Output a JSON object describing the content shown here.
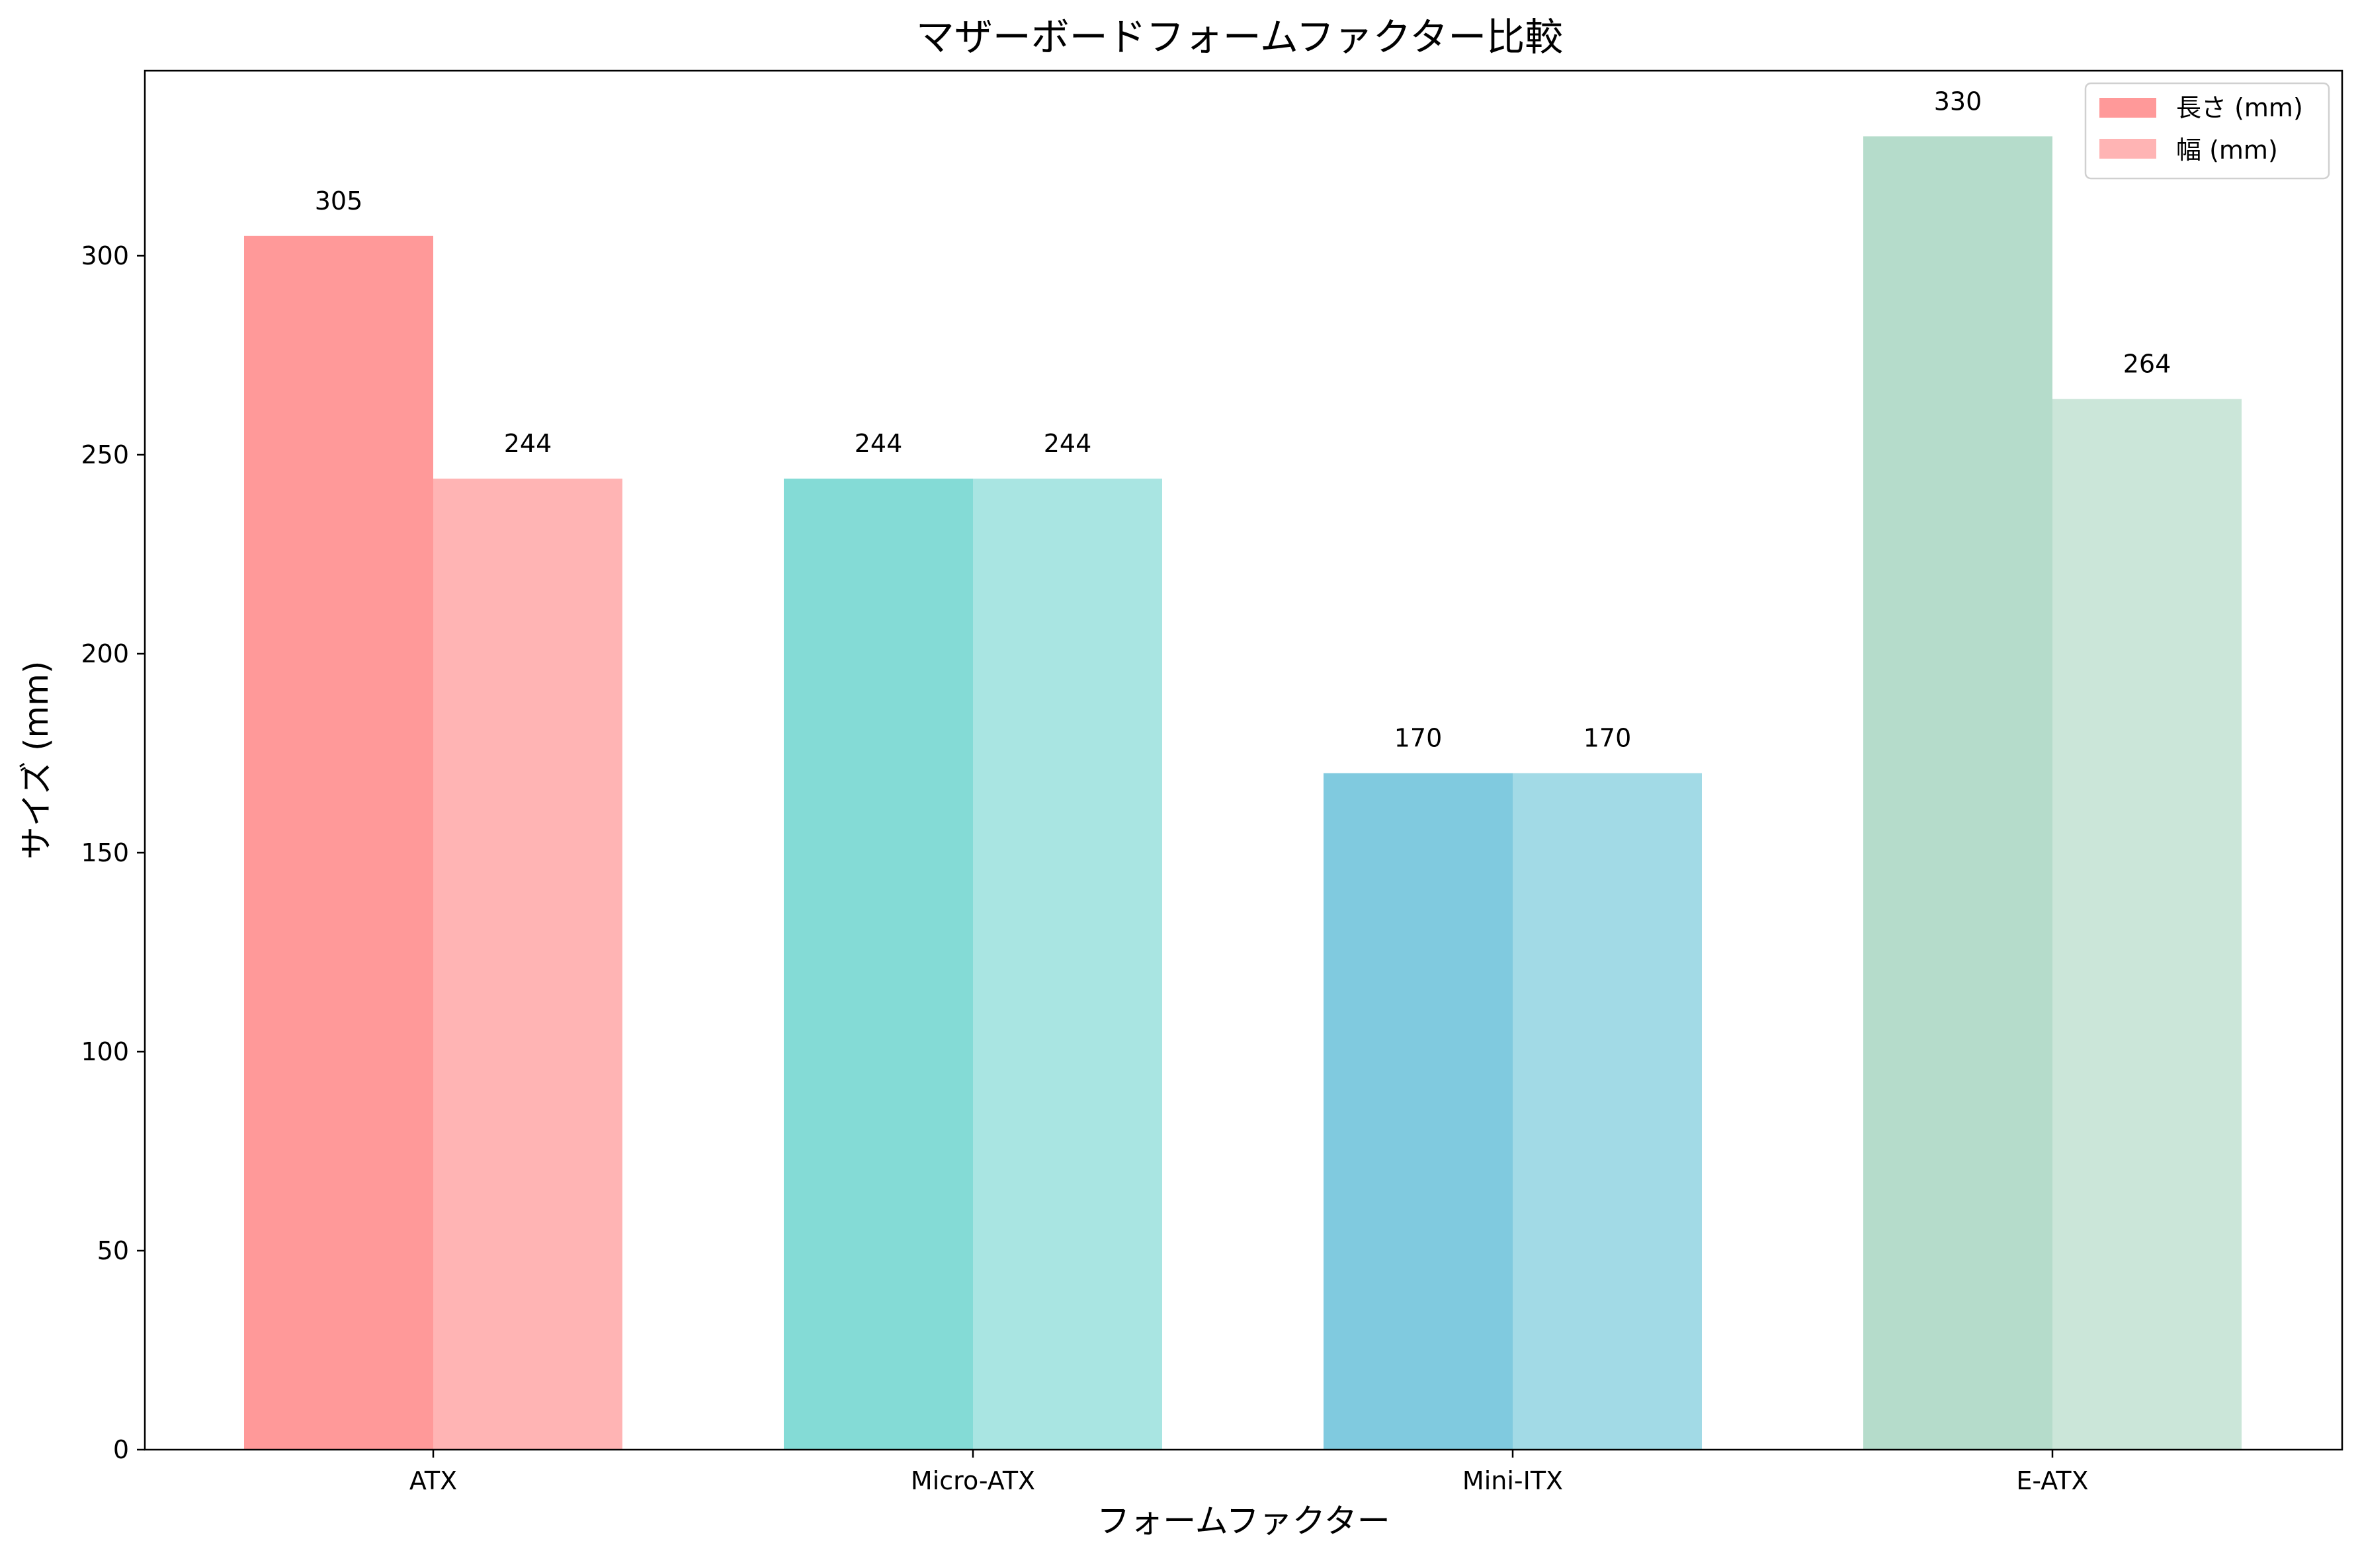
{
  "chart_data": {
    "type": "bar",
    "title": "マザーボードフォームファクター比較",
    "xlabel": "フォームファクター",
    "ylabel": "サイズ (mm)",
    "categories": [
      "ATX",
      "Micro-ATX",
      "Mini-ITX",
      "E-ATX"
    ],
    "series": [
      {
        "name": "長さ (mm)",
        "values": [
          305,
          244,
          170,
          330
        ]
      },
      {
        "name": "幅 (mm)",
        "values": [
          244,
          244,
          170,
          264
        ]
      }
    ],
    "ylim": [
      0,
      346.5
    ],
    "yticks": [
      0,
      50,
      100,
      150,
      200,
      250,
      300
    ],
    "grid": false,
    "legend_position": "top-right",
    "colors": {
      "length": [
        "#ff9999",
        "#84dbd6",
        "#80cadf",
        "#b5dccb"
      ],
      "width": [
        "#ffb4b4",
        "#a9e5e2",
        "#a2dae6",
        "#cbe6d9"
      ],
      "legend_length": "#ff9999",
      "legend_width": "#ffb4b4"
    }
  }
}
